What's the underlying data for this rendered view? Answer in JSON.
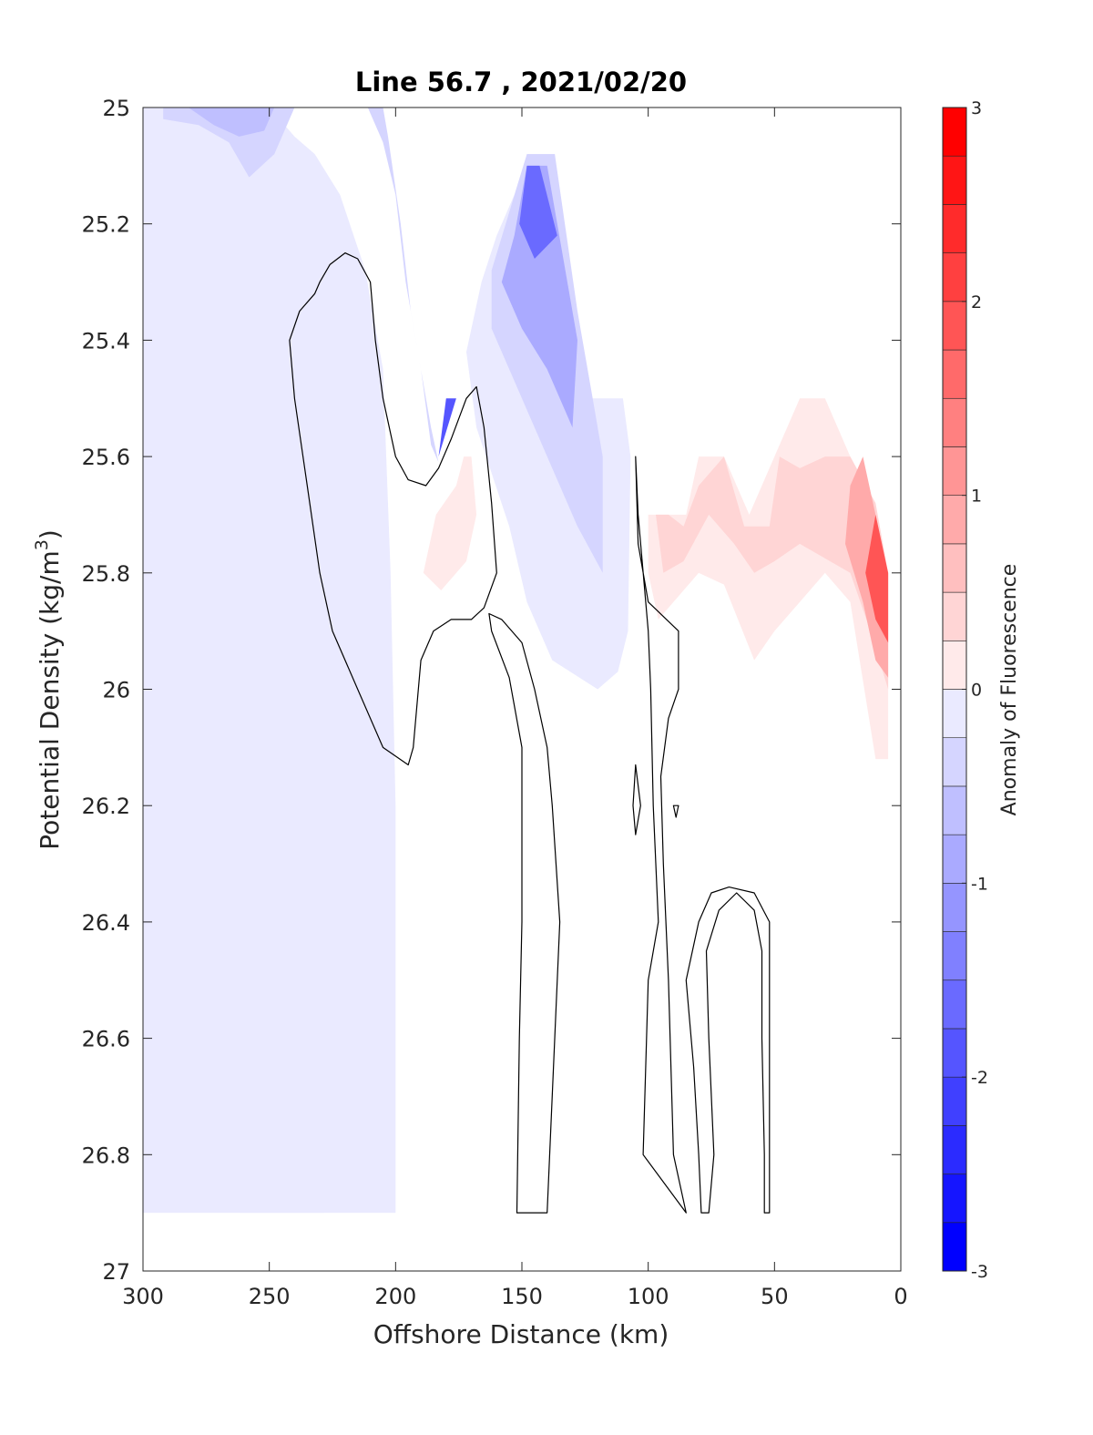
{
  "chart_data": {
    "type": "heatmap",
    "subtype": "filled-contour",
    "title": "Line 56.7 , 2021/02/20",
    "xlabel": "Offshore Distance (km)",
    "ylabel": "Potential Density (kg/m",
    "ylabel_superscript": "3",
    "ylabel_suffix": ")",
    "xlim": [
      300,
      0
    ],
    "x_reversed": true,
    "ylim": [
      25,
      27
    ],
    "y_reversed": true,
    "xticks": [
      300,
      250,
      200,
      150,
      100,
      50,
      0
    ],
    "xtick_labels": [
      "300",
      "250",
      "200",
      "150",
      "100",
      "50",
      "0"
    ],
    "yticks": [
      25,
      25.2,
      25.4,
      25.6,
      25.8,
      26,
      26.2,
      26.4,
      26.6,
      26.8,
      27
    ],
    "ytick_labels": [
      "25",
      "25.2",
      "25.4",
      "25.6",
      "25.8",
      "26",
      "26.2",
      "26.4",
      "26.6",
      "26.8",
      "27"
    ],
    "grid": false,
    "colorbar": {
      "label": "Anomaly of Fluorescence",
      "limits": [
        -3,
        3
      ],
      "ticks": [
        -3,
        -2,
        -1,
        0,
        1,
        2,
        3
      ],
      "tick_labels": [
        "-3",
        "-2",
        "-1",
        "0",
        "1",
        "2",
        "3"
      ],
      "levels": [
        -3,
        -2.75,
        -2.5,
        -2.25,
        -2,
        -1.75,
        -1.5,
        -1.25,
        -1,
        -0.75,
        -0.5,
        -0.25,
        0,
        0.25,
        0.5,
        0.75,
        1,
        1.25,
        1.5,
        1.75,
        2,
        2.25,
        2.5,
        2.75,
        3
      ],
      "colormap": "blue-white-red",
      "min_color": "#0000ff",
      "mid_color": "#ffffff",
      "max_color": "#ff0000"
    },
    "filled_regions": [
      {
        "name": "offshore weak negative",
        "level": -0.25,
        "points": [
          [
            300,
            25
          ],
          [
            250,
            25
          ],
          [
            240,
            25.05
          ],
          [
            232,
            25.08
          ],
          [
            222,
            25.15
          ],
          [
            212,
            25.28
          ],
          [
            205,
            25.45
          ],
          [
            202,
            25.8
          ],
          [
            200,
            26.2
          ],
          [
            200,
            26.9
          ],
          [
            300,
            26.9
          ]
        ]
      },
      {
        "name": "offshore weak negative (core)",
        "level": -0.5,
        "points": [
          [
            292,
            25
          ],
          [
            240,
            25
          ],
          [
            248,
            25.08
          ],
          [
            258,
            25.12
          ],
          [
            266,
            25.06
          ],
          [
            278,
            25.03
          ],
          [
            292,
            25.02
          ]
        ]
      },
      {
        "name": "offshore weak negative (core 2)",
        "level": -0.75,
        "points": [
          [
            282,
            25
          ],
          [
            248,
            25
          ],
          [
            252,
            25.04
          ],
          [
            262,
            25.05
          ],
          [
            272,
            25.03
          ]
        ]
      },
      {
        "name": "bottom weak negative",
        "level": -0.25,
        "points": [
          [
            262,
            26.9
          ],
          [
            252,
            26.86
          ],
          [
            242,
            26.86
          ],
          [
            234,
            26.88
          ],
          [
            228,
            26.9
          ]
        ]
      },
      {
        "name": "thin strip near 200 km",
        "level": -0.5,
        "points": [
          [
            211,
            25
          ],
          [
            205,
            25.06
          ],
          [
            200,
            25.15
          ],
          [
            196,
            25.3
          ],
          [
            190,
            25.45
          ],
          [
            186,
            25.58
          ],
          [
            183,
            25.61
          ],
          [
            186,
            25.55
          ],
          [
            194,
            25.35
          ],
          [
            198,
            25.2
          ],
          [
            203,
            25.05
          ],
          [
            205,
            25
          ]
        ]
      },
      {
        "name": "mid-section negative tongue",
        "level": -0.25,
        "points": [
          [
            137,
            25.08
          ],
          [
            148,
            25.08
          ],
          [
            153,
            25.15
          ],
          [
            160,
            25.22
          ],
          [
            166,
            25.3
          ],
          [
            172,
            25.42
          ],
          [
            168,
            25.55
          ],
          [
            155,
            25.72
          ],
          [
            148,
            25.85
          ],
          [
            138,
            25.95
          ],
          [
            120,
            26
          ],
          [
            112,
            25.97
          ],
          [
            108,
            25.9
          ],
          [
            107,
            25.6
          ],
          [
            110,
            25.5
          ],
          [
            125,
            25.5
          ],
          [
            132,
            25.3
          ]
        ]
      },
      {
        "name": "mid-section negative tongue (inner)",
        "level": -0.5,
        "points": [
          [
            137,
            25.08
          ],
          [
            148,
            25.08
          ],
          [
            155,
            25.18
          ],
          [
            162,
            25.28
          ],
          [
            162,
            25.38
          ],
          [
            155,
            25.45
          ],
          [
            145,
            25.55
          ],
          [
            128,
            25.72
          ],
          [
            118,
            25.8
          ],
          [
            118,
            25.6
          ],
          [
            122,
            25.5
          ],
          [
            128,
            25.35
          ]
        ]
      },
      {
        "name": "mid-section negative tongue (core)",
        "level": -1.0,
        "points": [
          [
            140,
            25.1
          ],
          [
            148,
            25.1
          ],
          [
            153,
            25.22
          ],
          [
            158,
            25.3
          ],
          [
            150,
            25.38
          ],
          [
            140,
            25.45
          ],
          [
            130,
            25.55
          ],
          [
            128,
            25.4
          ]
        ]
      },
      {
        "name": "mid-section negative tongue (peak)",
        "level": -1.75,
        "points": [
          [
            143,
            25.1
          ],
          [
            148,
            25.1
          ],
          [
            151,
            25.2
          ],
          [
            145,
            25.26
          ],
          [
            136,
            25.22
          ]
        ]
      },
      {
        "name": "small negative core near 180 km",
        "level": -2.0,
        "points": [
          [
            180,
            25.5
          ],
          [
            176,
            25.5
          ],
          [
            183,
            25.6
          ]
        ]
      },
      {
        "name": "small positive patch",
        "level": 0.25,
        "points": [
          [
            173,
            25.6
          ],
          [
            170,
            25.6
          ],
          [
            168,
            25.7
          ],
          [
            172,
            25.78
          ],
          [
            182,
            25.83
          ],
          [
            189,
            25.8
          ],
          [
            184,
            25.7
          ],
          [
            176,
            25.65
          ]
        ]
      },
      {
        "name": "nearshore positive region",
        "level": 0.25,
        "points": [
          [
            100,
            25.7
          ],
          [
            85,
            25.7
          ],
          [
            80,
            25.6
          ],
          [
            70,
            25.6
          ],
          [
            60,
            25.7
          ],
          [
            50,
            25.6
          ],
          [
            40,
            25.5
          ],
          [
            30,
            25.5
          ],
          [
            20,
            25.6
          ],
          [
            5,
            25.8
          ],
          [
            5,
            26.12
          ],
          [
            10,
            26.12
          ],
          [
            20,
            25.85
          ],
          [
            30,
            25.8
          ],
          [
            40,
            25.85
          ],
          [
            50,
            25.9
          ],
          [
            58,
            25.95
          ],
          [
            70,
            25.82
          ],
          [
            80,
            25.8
          ],
          [
            90,
            25.85
          ],
          [
            96,
            25.88
          ],
          [
            100,
            25.8
          ]
        ]
      },
      {
        "name": "nearshore positive (mid)",
        "level": 0.5,
        "points": [
          [
            97,
            25.7
          ],
          [
            92,
            25.7
          ],
          [
            86,
            25.72
          ],
          [
            80,
            25.65
          ],
          [
            70,
            25.6
          ],
          [
            62,
            25.72
          ],
          [
            52,
            25.72
          ],
          [
            48,
            25.6
          ],
          [
            40,
            25.62
          ],
          [
            30,
            25.6
          ],
          [
            20,
            25.6
          ],
          [
            10,
            25.68
          ],
          [
            5,
            25.8
          ],
          [
            5,
            26
          ],
          [
            12,
            25.9
          ],
          [
            20,
            25.8
          ],
          [
            28,
            25.78
          ],
          [
            40,
            25.75
          ],
          [
            50,
            25.78
          ],
          [
            58,
            25.8
          ],
          [
            66,
            25.75
          ],
          [
            76,
            25.7
          ],
          [
            86,
            25.78
          ],
          [
            94,
            25.8
          ]
        ]
      },
      {
        "name": "nearshore positive (inner)",
        "level": 1.0,
        "points": [
          [
            15,
            25.6
          ],
          [
            5,
            25.8
          ],
          [
            5,
            25.98
          ],
          [
            10,
            25.95
          ],
          [
            15,
            25.85
          ],
          [
            22,
            25.75
          ],
          [
            20,
            25.65
          ]
        ]
      },
      {
        "name": "nearshore positive (core)",
        "level": 2.0,
        "points": [
          [
            10,
            25.7
          ],
          [
            5,
            25.8
          ],
          [
            5,
            25.92
          ],
          [
            10,
            25.88
          ],
          [
            14,
            25.8
          ]
        ]
      }
    ],
    "zero_contours": [
      {
        "name": "contour A",
        "points": [
          [
            230,
            25.3
          ],
          [
            226,
            25.27
          ],
          [
            220,
            25.25
          ],
          [
            215,
            25.26
          ],
          [
            210,
            25.3
          ],
          [
            208,
            25.4
          ],
          [
            205,
            25.5
          ],
          [
            200,
            25.6
          ],
          [
            195,
            25.64
          ],
          [
            188,
            25.65
          ],
          [
            183,
            25.62
          ],
          [
            178,
            25.57
          ],
          [
            172,
            25.5
          ],
          [
            168,
            25.48
          ],
          [
            165,
            25.55
          ],
          [
            162,
            25.68
          ],
          [
            160,
            25.8
          ],
          [
            165,
            25.86
          ],
          [
            170,
            25.88
          ],
          [
            178,
            25.88
          ],
          [
            185,
            25.9
          ],
          [
            190,
            25.95
          ],
          [
            193,
            26.1
          ],
          [
            195,
            26.13
          ],
          [
            205,
            26.1
          ],
          [
            215,
            26.0
          ],
          [
            225,
            25.9
          ],
          [
            230,
            25.8
          ],
          [
            235,
            25.65
          ],
          [
            240,
            25.5
          ],
          [
            242,
            25.4
          ],
          [
            238,
            25.35
          ],
          [
            232,
            25.32
          ]
        ]
      },
      {
        "name": "contour B",
        "points": [
          [
            163,
            25.87
          ],
          [
            158,
            25.88
          ],
          [
            150,
            25.92
          ],
          [
            145,
            26.0
          ],
          [
            140,
            26.1
          ],
          [
            138,
            26.2
          ],
          [
            135,
            26.4
          ],
          [
            140,
            26.9
          ],
          [
            152,
            26.9
          ],
          [
            151,
            26.6
          ],
          [
            150,
            26.4
          ],
          [
            150,
            26.1
          ],
          [
            155,
            25.98
          ],
          [
            162,
            25.9
          ]
        ]
      },
      {
        "name": "contour C",
        "points": [
          [
            105,
            25.6
          ],
          [
            104,
            25.7
          ],
          [
            100,
            25.9
          ],
          [
            99,
            26.0
          ],
          [
            98,
            26.2
          ],
          [
            96,
            26.4
          ],
          [
            100,
            26.5
          ],
          [
            102,
            26.8
          ],
          [
            85,
            26.9
          ],
          [
            90,
            26.8
          ],
          [
            92,
            26.5
          ],
          [
            94,
            26.3
          ],
          [
            95,
            26.15
          ],
          [
            92,
            26.05
          ],
          [
            88,
            26.0
          ],
          [
            88,
            25.9
          ],
          [
            100,
            25.85
          ],
          [
            104,
            25.75
          ]
        ]
      },
      {
        "name": "contour D",
        "points": [
          [
            105,
            26.13
          ],
          [
            103,
            26.2
          ],
          [
            105,
            26.25
          ],
          [
            106,
            26.2
          ]
        ]
      },
      {
        "name": "contour E",
        "points": [
          [
            90,
            26.2
          ],
          [
            88,
            26.2
          ],
          [
            89,
            26.22
          ]
        ]
      },
      {
        "name": "contour F",
        "points": [
          [
            75,
            26.35
          ],
          [
            80,
            26.4
          ],
          [
            85,
            26.5
          ],
          [
            82,
            26.65
          ],
          [
            80,
            26.8
          ],
          [
            79,
            26.9
          ],
          [
            76,
            26.9
          ],
          [
            74,
            26.8
          ],
          [
            76,
            26.6
          ],
          [
            77,
            26.45
          ],
          [
            72,
            26.38
          ],
          [
            65,
            26.35
          ],
          [
            58,
            26.38
          ],
          [
            55,
            26.45
          ],
          [
            55,
            26.6
          ],
          [
            54,
            26.8
          ],
          [
            54,
            26.9
          ],
          [
            52,
            26.9
          ],
          [
            52,
            26.6
          ],
          [
            52,
            26.4
          ],
          [
            58,
            26.35
          ],
          [
            68,
            26.34
          ]
        ]
      }
    ]
  }
}
